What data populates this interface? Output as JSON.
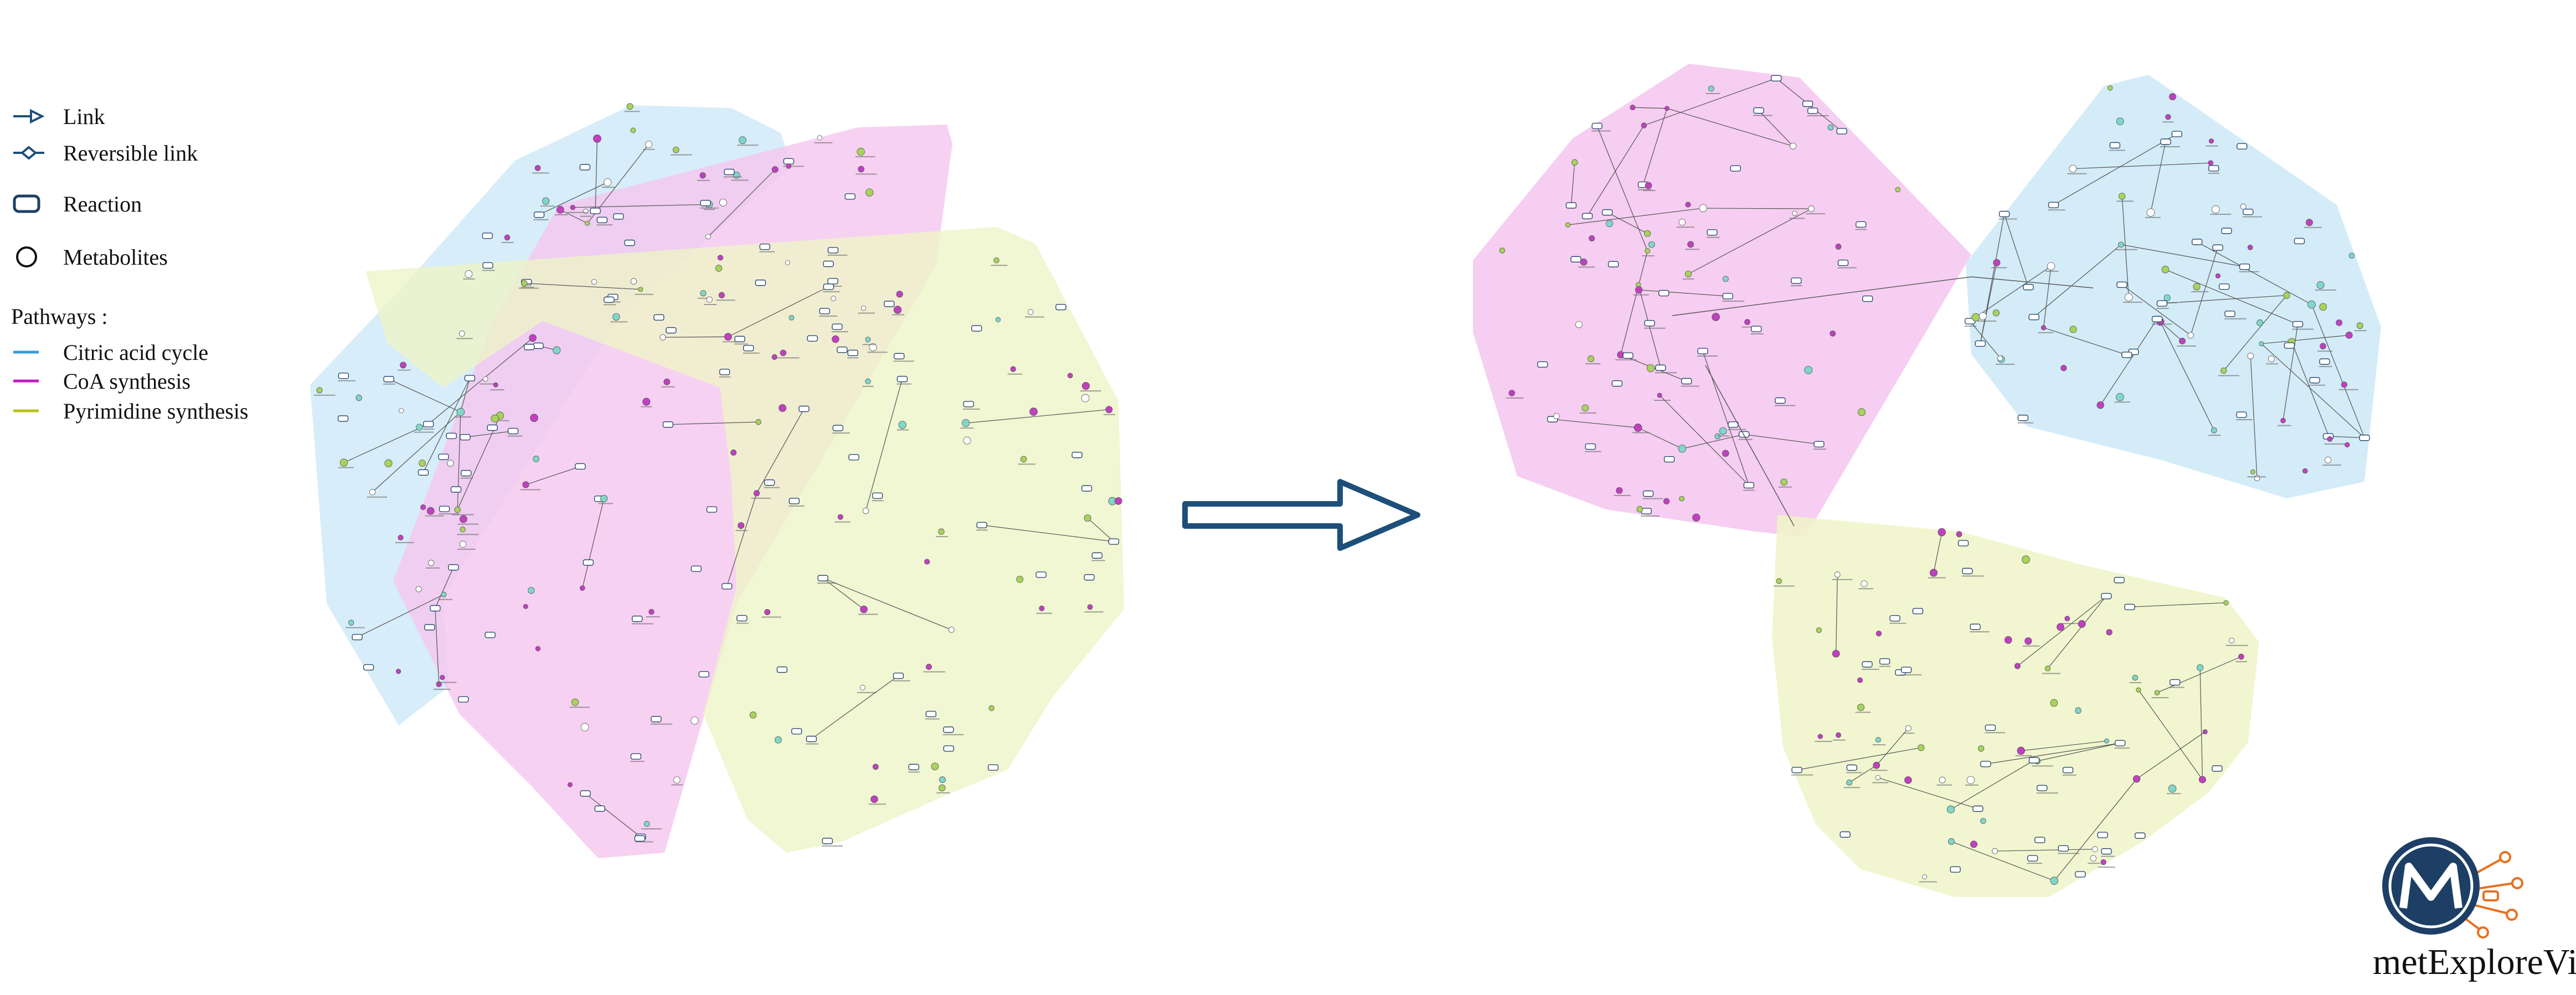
{
  "legend": {
    "items": [
      {
        "label": "Link",
        "icon": "arrow-link-icon"
      },
      {
        "label": "Reversible link",
        "icon": "reversible-link-icon"
      },
      {
        "label": "Reaction",
        "icon": "reaction-node-icon"
      },
      {
        "label": "Metabolites",
        "icon": "metabolite-node-icon"
      }
    ],
    "pathways_title": "Pathways :",
    "pathways": [
      {
        "label": "Citric acid cycle",
        "color": "#3a9ad9"
      },
      {
        "label": "CoA synthesis",
        "color": "#c21ac2"
      },
      {
        "label": "Pyrimidine synthesis",
        "color": "#b8c414"
      }
    ]
  },
  "colors": {
    "citric_fill": "#cde9f7",
    "coa_fill": "#f5c6ef",
    "pyrimidine_fill": "#eef4c8",
    "arrow_stroke": "#1d4f7a",
    "edge": "#555555",
    "metabolite_stroke": "#c040c0",
    "reaction_stroke": "#1d3f66"
  },
  "logo": {
    "brand": "metExploreViz"
  }
}
